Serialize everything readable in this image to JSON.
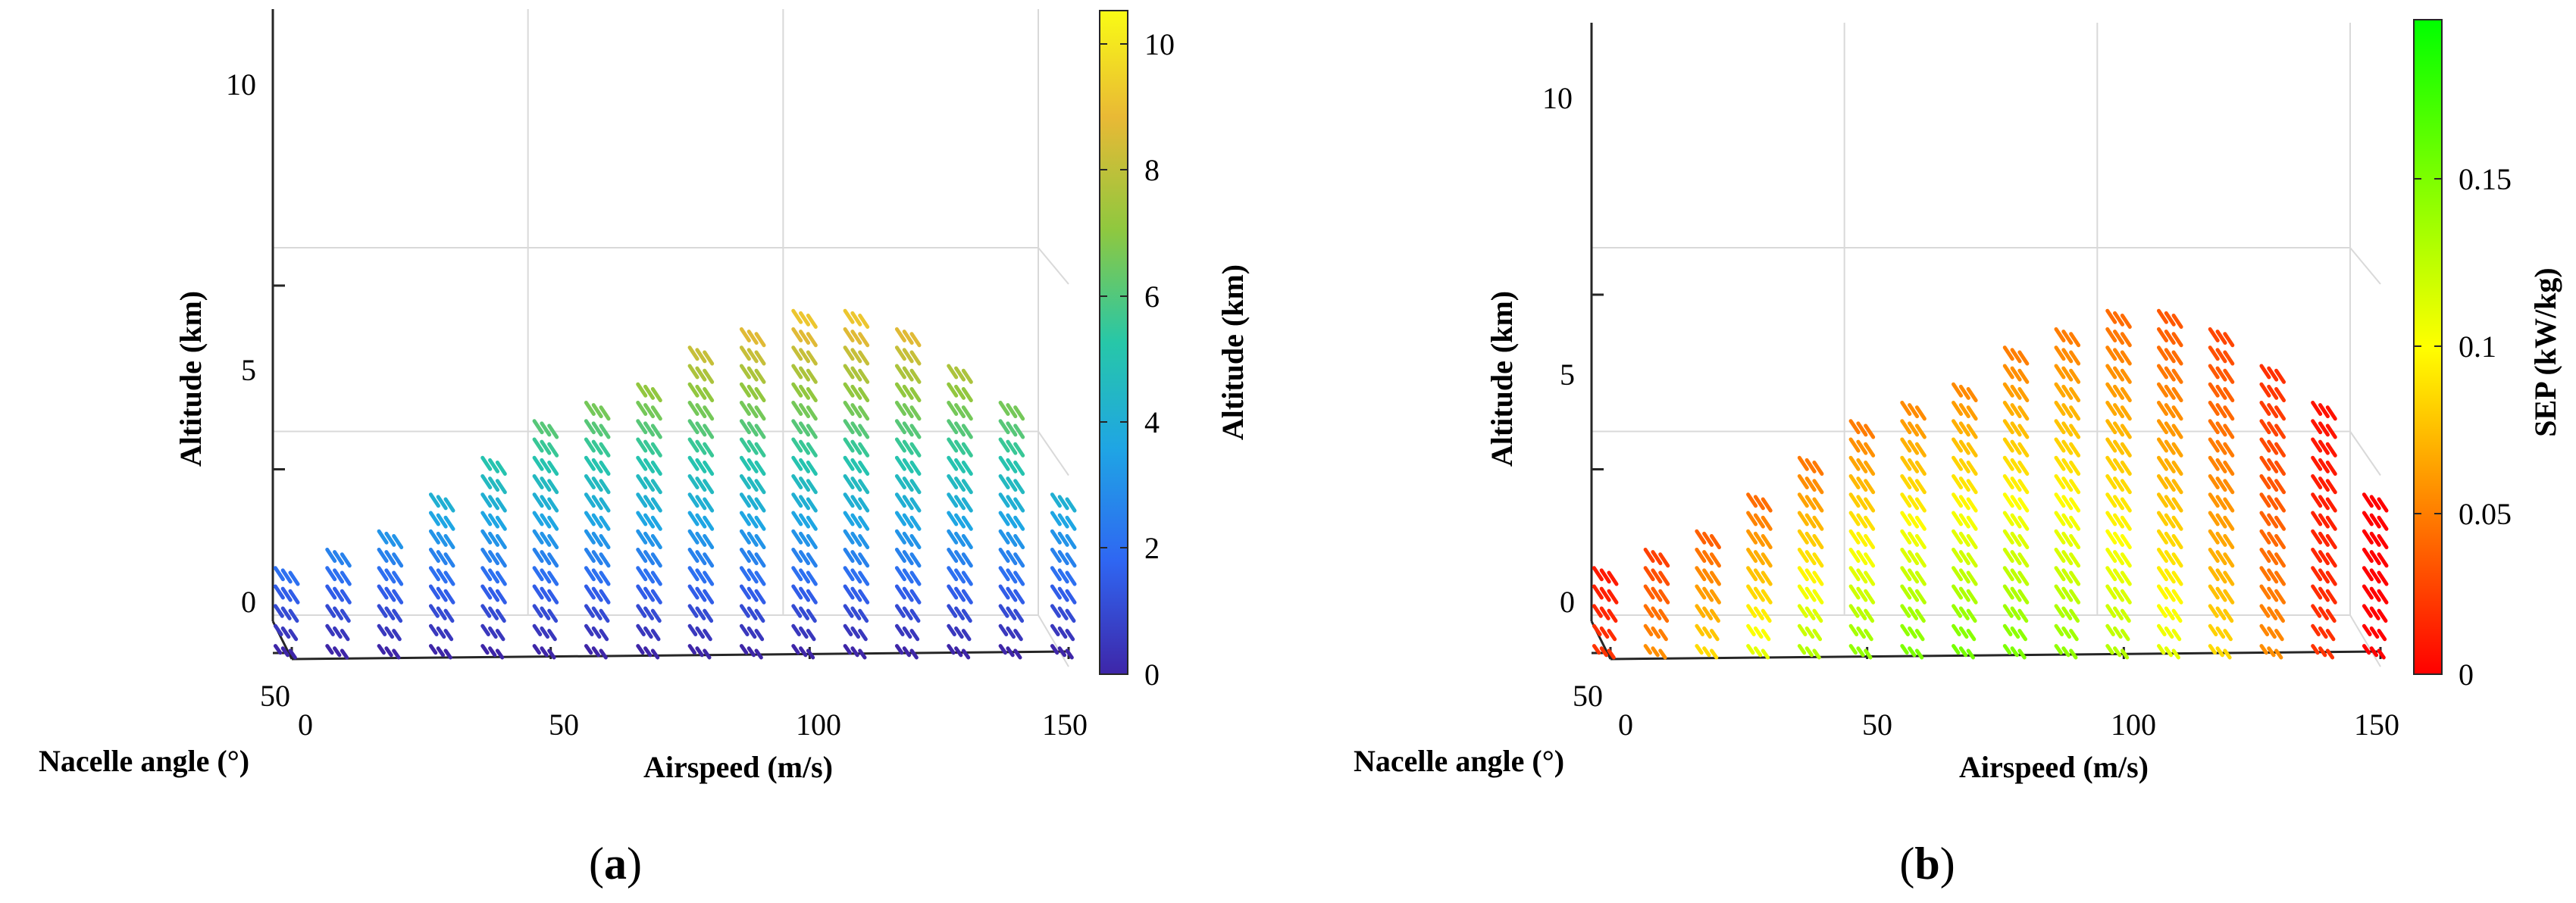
{
  "chart_data": [
    {
      "type": "scatter",
      "panel_label": "a",
      "x_axis": {
        "label": "Airspeed (m/s)",
        "range": [
          0,
          150
        ],
        "ticks": [
          "0",
          "50",
          "100",
          "150"
        ]
      },
      "z_axis": {
        "label": "Altitude (km)",
        "range": [
          0,
          10.5
        ],
        "ticks": [
          "0",
          "5",
          "10"
        ]
      },
      "depth_axis": {
        "label": "Nacelle angle (°)",
        "tick": "50"
      },
      "colorbar": {
        "label": "Altitude (km)",
        "colormap": "parula",
        "range": [
          0,
          10.4
        ],
        "ticks": [
          "0",
          "2",
          "4",
          "6",
          "8",
          "10"
        ],
        "colors": [
          "#3e26a8",
          "#2f66f2",
          "#1fa5e4",
          "#27c7a8",
          "#8fc83f",
          "#e9b935",
          "#f9fb15"
        ]
      },
      "color_by": "altitude",
      "columns": [
        {
          "airspeed": 0,
          "max_alt": 2.3
        },
        {
          "airspeed": 10,
          "max_alt": 2.6
        },
        {
          "airspeed": 20,
          "max_alt": 3.2
        },
        {
          "airspeed": 30,
          "max_alt": 4.1
        },
        {
          "airspeed": 40,
          "max_alt": 5.1
        },
        {
          "airspeed": 50,
          "max_alt": 6.0
        },
        {
          "airspeed": 60,
          "max_alt": 6.8
        },
        {
          "airspeed": 70,
          "max_alt": 7.3
        },
        {
          "airspeed": 80,
          "max_alt": 8.1
        },
        {
          "airspeed": 90,
          "max_alt": 8.9
        },
        {
          "airspeed": 100,
          "max_alt": 9.2
        },
        {
          "airspeed": 110,
          "max_alt": 9.0
        },
        {
          "airspeed": 120,
          "max_alt": 8.6
        },
        {
          "airspeed": 130,
          "max_alt": 7.7
        },
        {
          "airspeed": 140,
          "max_alt": 6.7
        },
        {
          "airspeed": 150,
          "max_alt": 4.3
        }
      ]
    },
    {
      "type": "scatter",
      "panel_label": "b",
      "x_axis": {
        "label": "Airspeed (m/s)",
        "range": [
          0,
          150
        ],
        "ticks": [
          "0",
          "50",
          "100",
          "150"
        ]
      },
      "z_axis": {
        "label": "Altitude (km)",
        "range": [
          0,
          10.5
        ],
        "ticks": [
          "0",
          "5",
          "10"
        ]
      },
      "depth_axis": {
        "label": "Nacelle angle (°)",
        "tick": "50"
      },
      "colorbar": {
        "label": "SEP (kW/kg)",
        "colormap": "red-yellow-green",
        "range": [
          0,
          0.195
        ],
        "ticks": [
          "0",
          "0.05",
          "0.1",
          "0.15"
        ],
        "colors": [
          "#ff0000",
          "#ff8000",
          "#ffff00",
          "#80ff00",
          "#00ff00"
        ]
      },
      "color_by": "SEP",
      "sep_peak": {
        "airspeed": 70,
        "value": 0.15
      },
      "columns": [
        {
          "airspeed": 0,
          "max_alt": 2.3
        },
        {
          "airspeed": 10,
          "max_alt": 2.6
        },
        {
          "airspeed": 20,
          "max_alt": 3.2
        },
        {
          "airspeed": 30,
          "max_alt": 4.1
        },
        {
          "airspeed": 40,
          "max_alt": 5.1
        },
        {
          "airspeed": 50,
          "max_alt": 6.0
        },
        {
          "airspeed": 60,
          "max_alt": 6.8
        },
        {
          "airspeed": 70,
          "max_alt": 7.3
        },
        {
          "airspeed": 80,
          "max_alt": 8.1
        },
        {
          "airspeed": 90,
          "max_alt": 8.9
        },
        {
          "airspeed": 100,
          "max_alt": 9.2
        },
        {
          "airspeed": 110,
          "max_alt": 9.0
        },
        {
          "airspeed": 120,
          "max_alt": 8.6
        },
        {
          "airspeed": 130,
          "max_alt": 7.7
        },
        {
          "airspeed": 140,
          "max_alt": 6.7
        },
        {
          "airspeed": 150,
          "max_alt": 4.3
        }
      ]
    }
  ],
  "captions": {
    "a": "(a)",
    "b": "(b)"
  },
  "caption_letters": {
    "a": "a",
    "b": "b"
  }
}
